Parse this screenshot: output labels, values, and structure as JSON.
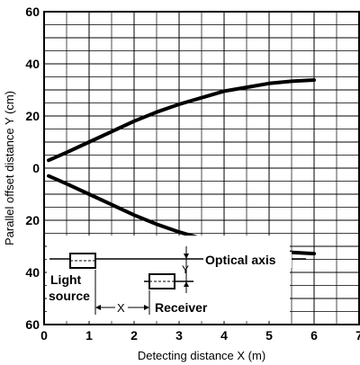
{
  "chart_data": {
    "type": "line",
    "xlabel": "Detecting distance X (m)",
    "ylabel": "Parallel offset distance Y (cm)",
    "xlim": [
      0,
      7
    ],
    "ylim": [
      60,
      -60
    ],
    "x_ticks": [
      "0",
      "1",
      "2",
      "3",
      "4",
      "5",
      "6",
      "7"
    ],
    "y_ticks": [
      "60",
      "40",
      "20",
      "0",
      "20",
      "40",
      "60"
    ],
    "grid": true,
    "series": [
      {
        "x": [
          0.1,
          0.5,
          1.0,
          1.5,
          2.0,
          2.5,
          3.0,
          3.5,
          4.0,
          4.5,
          5.0,
          5.5,
          6.0
        ],
        "y": [
          3,
          6,
          10,
          14,
          18,
          21.5,
          24.5,
          27,
          29.5,
          31,
          32.5,
          33.3,
          33.8
        ]
      },
      {
        "x": [
          0.1,
          0.5,
          1.0,
          1.5,
          2.0,
          2.5,
          3.0,
          3.5,
          4.0,
          4.5,
          5.0,
          5.5,
          6.0
        ],
        "y": [
          -3,
          -6,
          -10,
          -14,
          -18,
          -21.5,
          -24.5,
          -27,
          -29.5,
          -31,
          -31.8,
          -32.3,
          -32.8
        ]
      }
    ],
    "annotations": {
      "optical_axis": "Optical axis",
      "light_source_line1": "Light",
      "light_source_line2": "source",
      "receiver": "Receiver",
      "x_marker": "X",
      "y_marker": "Y"
    }
  }
}
